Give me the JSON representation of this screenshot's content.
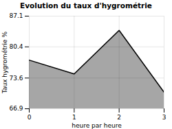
{
  "chart_data": {
    "type": "area",
    "title": "Evolution du taux d'hygrométrie",
    "xlabel": "heure par heure",
    "ylabel": "Taux hygrométrie %",
    "x": [
      0,
      1,
      2,
      3
    ],
    "values": [
      77.5,
      74.5,
      84.0,
      70.5
    ],
    "xlim": [
      0,
      3
    ],
    "xticks": [
      0,
      1,
      2,
      3
    ],
    "ylim": [
      66.9,
      87.1
    ],
    "yticks": [
      66.9,
      73.6,
      80.4,
      87.1
    ],
    "grid": true
  }
}
